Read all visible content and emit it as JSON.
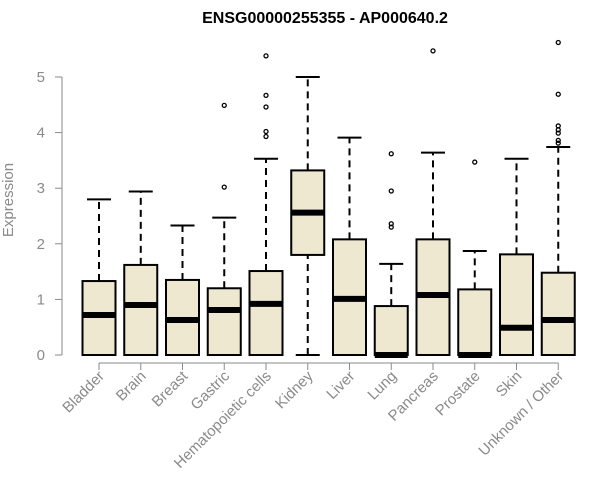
{
  "chart_data": {
    "type": "boxplot",
    "title": "ENSG00000255355 - AP000640.2",
    "ylabel": "Expression",
    "xlabel": "",
    "ylim": [
      0,
      5.5
    ],
    "yticks": [
      0,
      1,
      2,
      3,
      4,
      5
    ],
    "grid": false,
    "legend": "none",
    "colors": {
      "box_fill": "#efe8d0",
      "box_stroke": "#000000",
      "axis": "#8a8a8a",
      "title": "#000000"
    },
    "categories": [
      "Bladder",
      "Brain",
      "Breast",
      "Gastric",
      "Hematopoietic cells",
      "Kidney",
      "Liver",
      "Lung",
      "Pancreas",
      "Prostate",
      "Skin",
      "Unknown / Other"
    ],
    "boxes": [
      {
        "category": "Bladder",
        "whisker_low": 0,
        "q1": 0,
        "median": 0.72,
        "q3": 1.33,
        "whisker_high": 2.8,
        "outliers": []
      },
      {
        "category": "Brain",
        "whisker_low": 0,
        "q1": 0,
        "median": 0.9,
        "q3": 1.62,
        "whisker_high": 2.94,
        "outliers": []
      },
      {
        "category": "Breast",
        "whisker_low": 0,
        "q1": 0,
        "median": 0.63,
        "q3": 1.35,
        "whisker_high": 2.33,
        "outliers": []
      },
      {
        "category": "Gastric",
        "whisker_low": 0,
        "q1": 0,
        "median": 0.81,
        "q3": 1.2,
        "whisker_high": 2.47,
        "outliers": [
          3.02,
          4.49
        ]
      },
      {
        "category": "Hematopoietic cells",
        "whisker_low": 0,
        "q1": 0,
        "median": 0.92,
        "q3": 1.51,
        "whisker_high": 3.53,
        "outliers": [
          3.93,
          4.02,
          4.46,
          4.67,
          5.38
        ]
      },
      {
        "category": "Kidney",
        "whisker_low": 0,
        "q1": 1.8,
        "median": 2.56,
        "q3": 3.32,
        "whisker_high": 5.0,
        "outliers": []
      },
      {
        "category": "Liver",
        "whisker_low": 0,
        "q1": 0,
        "median": 1.01,
        "q3": 2.08,
        "whisker_high": 3.91,
        "outliers": []
      },
      {
        "category": "Lung",
        "whisker_low": 0,
        "q1": 0,
        "median": 0,
        "q3": 0.88,
        "whisker_high": 1.64,
        "outliers": [
          2.3,
          2.36,
          2.95,
          3.62
        ]
      },
      {
        "category": "Pancreas",
        "whisker_low": 0,
        "q1": 0,
        "median": 1.08,
        "q3": 2.08,
        "whisker_high": 3.64,
        "outliers": [
          5.47
        ]
      },
      {
        "category": "Prostate",
        "whisker_low": 0,
        "q1": 0,
        "median": 0,
        "q3": 1.18,
        "whisker_high": 1.87,
        "outliers": [
          3.47
        ]
      },
      {
        "category": "Skin",
        "whisker_low": 0,
        "q1": 0,
        "median": 0.49,
        "q3": 1.81,
        "whisker_high": 3.53,
        "outliers": []
      },
      {
        "category": "Unknown / Other",
        "whisker_low": 0,
        "q1": 0,
        "median": 0.63,
        "q3": 1.48,
        "whisker_high": 3.74,
        "outliers": [
          3.81,
          3.86,
          3.99,
          4.05,
          4.12,
          4.69,
          5.62
        ]
      }
    ]
  }
}
